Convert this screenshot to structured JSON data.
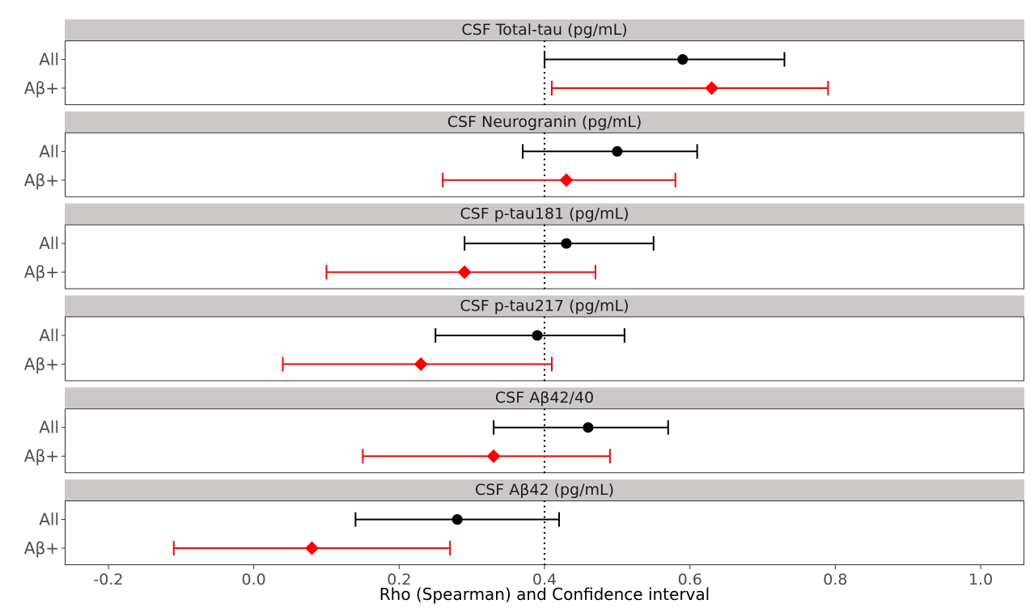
{
  "chart_data": {
    "type": "forest",
    "xlabel": "Rho (Spearman) and Confidence interval",
    "xlim": [
      -0.26,
      1.06
    ],
    "xticks": [
      -0.2,
      0.0,
      0.2,
      0.4,
      0.6,
      0.8,
      1.0
    ],
    "xtick_labels": [
      "-0.2",
      "0.0",
      "0.2",
      "0.4",
      "0.6",
      "0.8",
      "1.0"
    ],
    "reference_line": 0.4,
    "groups": [
      {
        "label": "All",
        "color": "#000000",
        "marker": "circle"
      },
      {
        "label": "Aβ+",
        "color": "#ff0000",
        "marker": "diamond"
      }
    ],
    "panels": [
      {
        "title": "CSF Total-tau (pg/mL)",
        "estimates": [
          {
            "est": 0.59,
            "lo": 0.4,
            "hi": 0.73
          },
          {
            "est": 0.63,
            "lo": 0.41,
            "hi": 0.79
          }
        ]
      },
      {
        "title": "CSF Neurogranin (pg/mL)",
        "estimates": [
          {
            "est": 0.5,
            "lo": 0.37,
            "hi": 0.61
          },
          {
            "est": 0.43,
            "lo": 0.26,
            "hi": 0.58
          }
        ]
      },
      {
        "title": "CSF p-tau181 (pg/mL)",
        "estimates": [
          {
            "est": 0.43,
            "lo": 0.29,
            "hi": 0.55
          },
          {
            "est": 0.29,
            "lo": 0.1,
            "hi": 0.47
          }
        ]
      },
      {
        "title": "CSF p-tau217 (pg/mL)",
        "estimates": [
          {
            "est": 0.39,
            "lo": 0.25,
            "hi": 0.51
          },
          {
            "est": 0.23,
            "lo": 0.04,
            "hi": 0.41
          }
        ]
      },
      {
        "title": "CSF Aβ42/40",
        "estimates": [
          {
            "est": 0.46,
            "lo": 0.33,
            "hi": 0.57
          },
          {
            "est": 0.33,
            "lo": 0.15,
            "hi": 0.49
          }
        ]
      },
      {
        "title": "CSF Aβ42 (pg/mL)",
        "estimates": [
          {
            "est": 0.28,
            "lo": 0.14,
            "hi": 0.42
          },
          {
            "est": 0.08,
            "lo": -0.11,
            "hi": 0.27
          }
        ]
      }
    ]
  }
}
